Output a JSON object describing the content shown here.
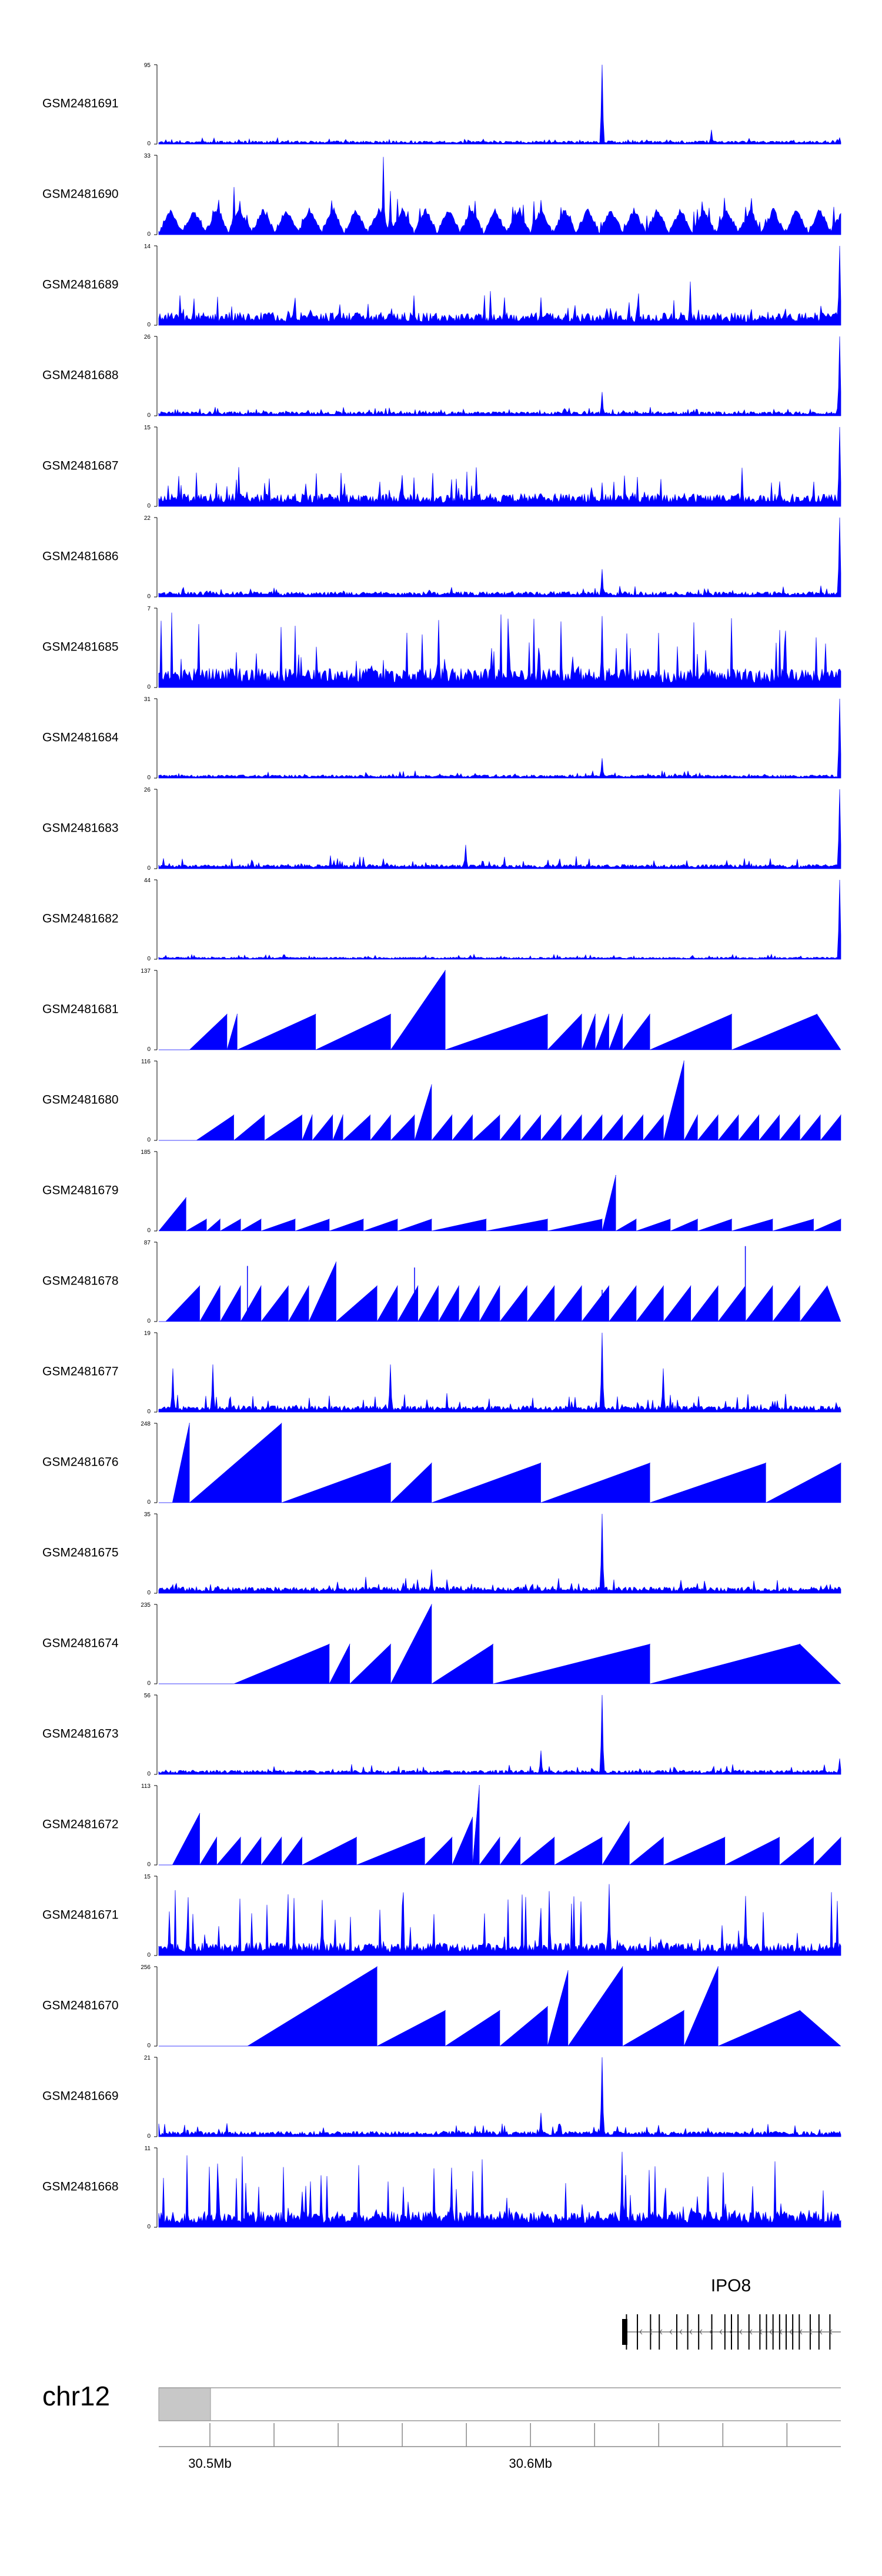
{
  "chart_data": {
    "type": "area",
    "color": "#0000ff",
    "tracks": [
      {
        "name": "GSM2481691",
        "ymax": "95",
        "ymin": "0",
        "style": "noise",
        "base": 0.03,
        "noise": 0.03,
        "spikes": [
          [
            0.65,
            1.0
          ],
          [
            0.81,
            0.18
          ],
          [
            0.999,
            0.08
          ]
        ]
      },
      {
        "name": "GSM2481690",
        "ymax": "33",
        "ymin": "0",
        "style": "pattern",
        "period": 0.034,
        "h": 0.32,
        "noise": 0.12,
        "spikes": [
          [
            0.11,
            0.6
          ],
          [
            0.33,
            0.98
          ],
          [
            0.34,
            0.55
          ],
          [
            0.35,
            0.45
          ],
          [
            0.55,
            0.42
          ],
          [
            0.86,
            0.35
          ],
          [
            0.99,
            0.35
          ]
        ]
      },
      {
        "name": "GSM2481689",
        "ymax": "14",
        "ymin": "0",
        "style": "noise",
        "base": 0.12,
        "noise": 0.22,
        "spikes": [
          [
            0.56,
            0.35
          ],
          [
            0.78,
            0.55
          ],
          [
            0.999,
            1.0
          ]
        ]
      },
      {
        "name": "GSM2481688",
        "ymax": "26",
        "ymin": "0",
        "style": "noise",
        "base": 0.04,
        "noise": 0.05,
        "spikes": [
          [
            0.65,
            0.3
          ],
          [
            0.999,
            1.0
          ]
        ]
      },
      {
        "name": "GSM2481687",
        "ymax": "15",
        "ymin": "0",
        "style": "noise",
        "base": 0.12,
        "noise": 0.25,
        "spikes": [
          [
            0.65,
            0.3
          ],
          [
            0.999,
            1.0
          ]
        ]
      },
      {
        "name": "GSM2481686",
        "ymax": "22",
        "ymin": "0",
        "style": "noise",
        "base": 0.05,
        "noise": 0.06,
        "spikes": [
          [
            0.65,
            0.35
          ],
          [
            0.999,
            1.0
          ]
        ]
      },
      {
        "name": "GSM2481685",
        "ymax": "7",
        "ymin": "0",
        "style": "noise",
        "base": 0.18,
        "noise": 0.55,
        "spikes": [
          [
            0.41,
            0.85
          ],
          [
            0.65,
            0.9
          ]
        ]
      },
      {
        "name": "GSM2481684",
        "ymax": "31",
        "ymin": "0",
        "style": "noise",
        "base": 0.03,
        "noise": 0.04,
        "spikes": [
          [
            0.65,
            0.25
          ],
          [
            0.999,
            1.0
          ]
        ]
      },
      {
        "name": "GSM2481683",
        "ymax": "26",
        "ymin": "0",
        "style": "noise",
        "base": 0.04,
        "noise": 0.08,
        "spikes": [
          [
            0.45,
            0.3
          ],
          [
            0.999,
            1.0
          ]
        ]
      },
      {
        "name": "GSM2481682",
        "ymax": "44",
        "ymin": "0",
        "style": "noise",
        "base": 0.02,
        "noise": 0.03,
        "spikes": [
          [
            0.999,
            1.0
          ]
        ]
      },
      {
        "name": "GSM2481681",
        "ymax": "137",
        "ymin": "0",
        "style": "peaks",
        "peaks": [
          [
            0.045,
            0.1,
            0.45
          ],
          [
            0.1,
            0.115,
            0.45
          ],
          [
            0.115,
            0.23,
            0.45
          ],
          [
            0.23,
            0.34,
            0.45
          ],
          [
            0.34,
            0.42,
            1.0
          ],
          [
            0.42,
            0.57,
            0.45
          ],
          [
            0.57,
            0.62,
            0.45
          ],
          [
            0.62,
            0.64,
            0.45
          ],
          [
            0.64,
            0.66,
            0.45
          ],
          [
            0.66,
            0.68,
            0.45
          ],
          [
            0.68,
            0.72,
            0.45
          ],
          [
            0.72,
            0.84,
            0.45
          ],
          [
            0.84,
            0.965,
            0.45
          ]
        ]
      },
      {
        "name": "GSM2481680",
        "ymax": "116",
        "ymin": "0",
        "style": "peaks",
        "peaks": [
          [
            0.055,
            0.11,
            0.32
          ],
          [
            0.11,
            0.155,
            0.32
          ],
          [
            0.155,
            0.21,
            0.32
          ],
          [
            0.21,
            0.225,
            0.32
          ],
          [
            0.225,
            0.255,
            0.32
          ],
          [
            0.255,
            0.27,
            0.32
          ],
          [
            0.27,
            0.31,
            0.32
          ],
          [
            0.31,
            0.34,
            0.32
          ],
          [
            0.34,
            0.375,
            0.32
          ],
          [
            0.375,
            0.4,
            0.7
          ],
          [
            0.4,
            0.43,
            0.32
          ],
          [
            0.43,
            0.46,
            0.32
          ],
          [
            0.46,
            0.5,
            0.32
          ],
          [
            0.5,
            0.53,
            0.32
          ],
          [
            0.53,
            0.56,
            0.32
          ],
          [
            0.56,
            0.59,
            0.32
          ],
          [
            0.59,
            0.62,
            0.32
          ],
          [
            0.62,
            0.65,
            0.32
          ],
          [
            0.65,
            0.68,
            0.32
          ],
          [
            0.68,
            0.71,
            0.32
          ],
          [
            0.71,
            0.74,
            0.32
          ],
          [
            0.74,
            0.77,
            1.0
          ],
          [
            0.77,
            0.79,
            0.32
          ],
          [
            0.79,
            0.82,
            0.32
          ],
          [
            0.82,
            0.85,
            0.32
          ],
          [
            0.85,
            0.88,
            0.32
          ],
          [
            0.88,
            0.91,
            0.32
          ],
          [
            0.91,
            0.94,
            0.32
          ],
          [
            0.94,
            0.97,
            0.32
          ],
          [
            0.97,
            1.0,
            0.32
          ]
        ]
      },
      {
        "name": "GSM2481679",
        "ymax": "185",
        "ymin": "0",
        "style": "peaks",
        "peaks": [
          [
            0.0,
            0.04,
            0.42
          ],
          [
            0.04,
            0.07,
            0.15
          ],
          [
            0.07,
            0.09,
            0.15
          ],
          [
            0.09,
            0.12,
            0.15
          ],
          [
            0.12,
            0.15,
            0.15
          ],
          [
            0.15,
            0.2,
            0.15
          ],
          [
            0.2,
            0.25,
            0.15
          ],
          [
            0.25,
            0.3,
            0.15
          ],
          [
            0.3,
            0.35,
            0.15
          ],
          [
            0.35,
            0.4,
            0.15
          ],
          [
            0.4,
            0.48,
            0.15
          ],
          [
            0.48,
            0.57,
            0.15
          ],
          [
            0.57,
            0.65,
            0.15
          ],
          [
            0.65,
            0.67,
            0.7
          ],
          [
            0.67,
            0.7,
            0.15
          ],
          [
            0.7,
            0.75,
            0.15
          ],
          [
            0.75,
            0.79,
            0.15
          ],
          [
            0.79,
            0.84,
            0.15
          ],
          [
            0.84,
            0.9,
            0.15
          ],
          [
            0.9,
            0.96,
            0.15
          ],
          [
            0.96,
            1.0,
            0.15
          ]
        ]
      },
      {
        "name": "GSM2481678",
        "ymax": "87",
        "ymin": "0",
        "style": "peaks",
        "peaks": [
          [
            0.01,
            0.06,
            0.45
          ],
          [
            0.06,
            0.09,
            0.45
          ],
          [
            0.09,
            0.12,
            0.45
          ],
          [
            0.12,
            0.15,
            0.45
          ],
          [
            0.15,
            0.19,
            0.45
          ],
          [
            0.19,
            0.22,
            0.45
          ],
          [
            0.22,
            0.26,
            0.75
          ],
          [
            0.26,
            0.32,
            0.45
          ],
          [
            0.32,
            0.35,
            0.45
          ],
          [
            0.35,
            0.38,
            0.45
          ],
          [
            0.38,
            0.41,
            0.45
          ],
          [
            0.41,
            0.44,
            0.45
          ],
          [
            0.44,
            0.47,
            0.45
          ],
          [
            0.47,
            0.5,
            0.45
          ],
          [
            0.5,
            0.54,
            0.45
          ],
          [
            0.54,
            0.58,
            0.45
          ],
          [
            0.58,
            0.62,
            0.45
          ],
          [
            0.62,
            0.66,
            0.45
          ],
          [
            0.66,
            0.7,
            0.45
          ],
          [
            0.7,
            0.74,
            0.45
          ],
          [
            0.74,
            0.78,
            0.45
          ],
          [
            0.78,
            0.82,
            0.45
          ],
          [
            0.82,
            0.86,
            0.45
          ],
          [
            0.86,
            0.9,
            0.45
          ],
          [
            0.9,
            0.94,
            0.45
          ],
          [
            0.94,
            0.98,
            0.45
          ]
        ],
        "spikes": [
          [
            0.13,
            0.7
          ],
          [
            0.375,
            0.68
          ],
          [
            0.65,
            0.4
          ],
          [
            0.86,
            0.95
          ]
        ]
      },
      {
        "name": "GSM2481677",
        "ymax": "19",
        "ymin": "0",
        "style": "noise",
        "base": 0.06,
        "noise": 0.12,
        "spikes": [
          [
            0.02,
            0.55
          ],
          [
            0.08,
            0.6
          ],
          [
            0.34,
            0.6
          ],
          [
            0.65,
            1.0
          ],
          [
            0.74,
            0.55
          ]
        ]
      },
      {
        "name": "GSM2481676",
        "ymax": "248",
        "ymin": "0",
        "style": "peaks",
        "peaks": [
          [
            0.02,
            0.045,
            1.0
          ],
          [
            0.045,
            0.18,
            1.0
          ],
          [
            0.18,
            0.34,
            0.5
          ],
          [
            0.34,
            0.4,
            0.5
          ],
          [
            0.4,
            0.56,
            0.5
          ],
          [
            0.56,
            0.72,
            0.5
          ],
          [
            0.72,
            0.89,
            0.5
          ],
          [
            0.89,
            1.0,
            0.5
          ]
        ]
      },
      {
        "name": "GSM2481675",
        "ymax": "35",
        "ymin": "0",
        "style": "noise",
        "base": 0.06,
        "noise": 0.1,
        "spikes": [
          [
            0.65,
            1.0
          ],
          [
            0.4,
            0.3
          ]
        ]
      },
      {
        "name": "GSM2481674",
        "ymax": "235",
        "ymin": "0",
        "style": "peaks",
        "peaks": [
          [
            0.11,
            0.25,
            0.5
          ],
          [
            0.25,
            0.28,
            0.5
          ],
          [
            0.28,
            0.34,
            0.5
          ],
          [
            0.34,
            0.4,
            1.0
          ],
          [
            0.4,
            0.49,
            0.5
          ],
          [
            0.49,
            0.72,
            0.5
          ],
          [
            0.72,
            0.94,
            0.5
          ]
        ]
      },
      {
        "name": "GSM2481673",
        "ymax": "56",
        "ymin": "0",
        "style": "noise",
        "base": 0.04,
        "noise": 0.06,
        "spikes": [
          [
            0.56,
            0.3
          ],
          [
            0.65,
            1.0
          ],
          [
            0.999,
            0.2
          ]
        ]
      },
      {
        "name": "GSM2481672",
        "ymax": "113",
        "ymin": "0",
        "style": "peaks",
        "peaks": [
          [
            0.02,
            0.06,
            0.65
          ],
          [
            0.06,
            0.085,
            0.35
          ],
          [
            0.085,
            0.12,
            0.35
          ],
          [
            0.12,
            0.15,
            0.35
          ],
          [
            0.15,
            0.18,
            0.35
          ],
          [
            0.18,
            0.21,
            0.35
          ],
          [
            0.21,
            0.29,
            0.35
          ],
          [
            0.29,
            0.39,
            0.35
          ],
          [
            0.39,
            0.43,
            0.35
          ],
          [
            0.43,
            0.46,
            0.6
          ],
          [
            0.46,
            0.47,
            1.0
          ],
          [
            0.47,
            0.5,
            0.35
          ],
          [
            0.5,
            0.53,
            0.35
          ],
          [
            0.53,
            0.58,
            0.35
          ],
          [
            0.58,
            0.65,
            0.35
          ],
          [
            0.65,
            0.69,
            0.55
          ],
          [
            0.69,
            0.74,
            0.35
          ],
          [
            0.74,
            0.83,
            0.35
          ],
          [
            0.83,
            0.91,
            0.35
          ],
          [
            0.91,
            0.96,
            0.35
          ],
          [
            0.96,
            1.0,
            0.35
          ]
        ]
      },
      {
        "name": "GSM2481671",
        "ymax": "15",
        "ymin": "0",
        "style": "noise",
        "base": 0.12,
        "noise": 0.55,
        "spikes": [
          [
            0.24,
            0.7
          ],
          [
            0.66,
            0.9
          ],
          [
            0.86,
            0.75
          ]
        ]
      },
      {
        "name": "GSM2481670",
        "ymax": "256",
        "ymin": "0",
        "style": "peaks",
        "peaks": [
          [
            0.13,
            0.32,
            1.0
          ],
          [
            0.32,
            0.42,
            0.45
          ],
          [
            0.42,
            0.5,
            0.45
          ],
          [
            0.5,
            0.57,
            0.5
          ],
          [
            0.57,
            0.6,
            0.95
          ],
          [
            0.6,
            0.68,
            1.0
          ],
          [
            0.68,
            0.77,
            0.45
          ],
          [
            0.77,
            0.82,
            1.0
          ],
          [
            0.82,
            0.94,
            0.45
          ]
        ]
      },
      {
        "name": "GSM2481669",
        "ymax": "21",
        "ymin": "0",
        "style": "noise",
        "base": 0.05,
        "noise": 0.08,
        "spikes": [
          [
            0.65,
            1.0
          ],
          [
            0.56,
            0.3
          ]
        ]
      },
      {
        "name": "GSM2481668",
        "ymax": "11",
        "ymin": "0",
        "style": "noise",
        "base": 0.15,
        "noise": 0.55,
        "spikes": [
          [
            0.68,
            0.95
          ],
          [
            0.43,
            0.75
          ]
        ]
      }
    ],
    "gene": {
      "label": "IPO8",
      "exons": [
        0.02,
        0.07,
        0.13,
        0.17,
        0.25,
        0.3,
        0.35,
        0.41,
        0.47,
        0.5,
        0.53,
        0.58,
        0.63,
        0.66,
        0.69,
        0.72,
        0.75,
        0.78,
        0.81,
        0.86,
        0.9,
        0.95
      ]
    },
    "axis": {
      "chrom": "chr12",
      "tick_labels": [
        {
          "pos": 0.075,
          "text": "30.5Mb"
        },
        {
          "pos": 0.545,
          "text": "30.6Mb"
        }
      ],
      "minor_ticks": [
        0.075,
        0.169,
        0.263,
        0.357,
        0.451,
        0.545,
        0.639,
        0.733,
        0.827,
        0.921
      ]
    }
  }
}
